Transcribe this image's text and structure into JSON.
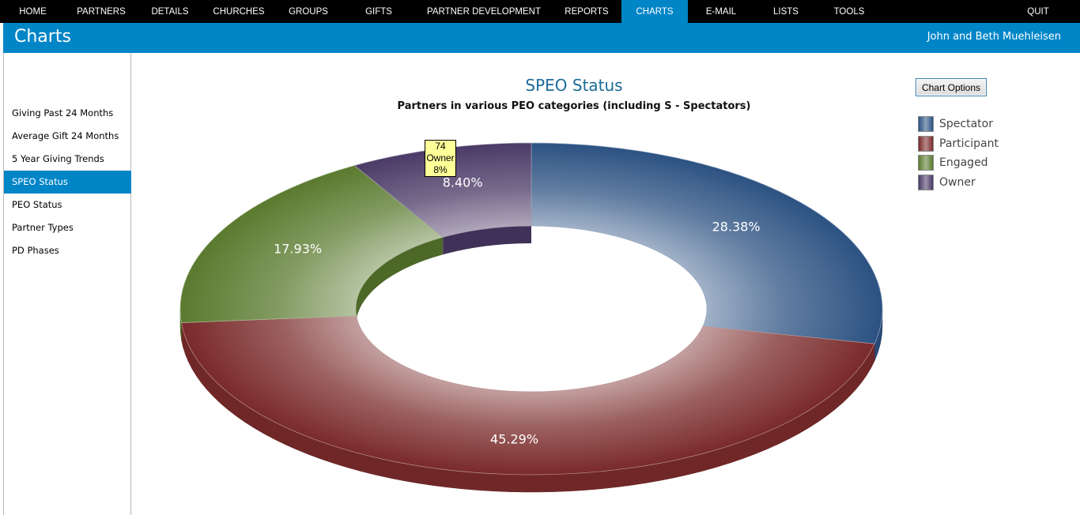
{
  "nav": {
    "items": [
      {
        "label": "HOME"
      },
      {
        "label": "PARTNERS"
      },
      {
        "label": "DETAILS"
      },
      {
        "label": "CHURCHES"
      },
      {
        "label": "GROUPS"
      },
      {
        "label": "GIFTS"
      },
      {
        "label": "PARTNER DEVELOPMENT"
      },
      {
        "label": "REPORTS"
      },
      {
        "label": "CHARTS",
        "active": true
      },
      {
        "label": "E-MAIL"
      },
      {
        "label": "LISTS"
      },
      {
        "label": "TOOLS"
      }
    ],
    "quit_label": "QUIT"
  },
  "header": {
    "title": "Charts",
    "user": "John and Beth Muehleisen"
  },
  "sidebar": {
    "items": [
      {
        "label": "Giving Past 24 Months"
      },
      {
        "label": "Average Gift 24 Months"
      },
      {
        "label": "5 Year Giving Trends"
      },
      {
        "label": "SPEO Status",
        "active": true
      },
      {
        "label": "PEO Status"
      },
      {
        "label": "Partner Types"
      },
      {
        "label": "PD Phases"
      }
    ]
  },
  "chart_options_label": "Chart Options",
  "tooltip": {
    "value": "74",
    "category": "Owner",
    "percent": "8%"
  },
  "chart_data": {
    "type": "pie",
    "style": "3d-donut",
    "title": "SPEO Status",
    "subtitle": "Partners in various PEO categories (including S - Spectators)",
    "legend_position": "top-right",
    "slices": [
      {
        "name": "Spectator",
        "value": 28.38,
        "label": "28.38%",
        "color": "#2c5282"
      },
      {
        "name": "Participant",
        "value": 45.29,
        "label": "45.29%",
        "color": "#7a2a2a"
      },
      {
        "name": "Engaged",
        "value": 17.93,
        "label": "17.93%",
        "color": "#5a7a2e"
      },
      {
        "name": "Owner",
        "value": 8.4,
        "label": "8.40%",
        "color": "#4a3a66"
      }
    ]
  }
}
